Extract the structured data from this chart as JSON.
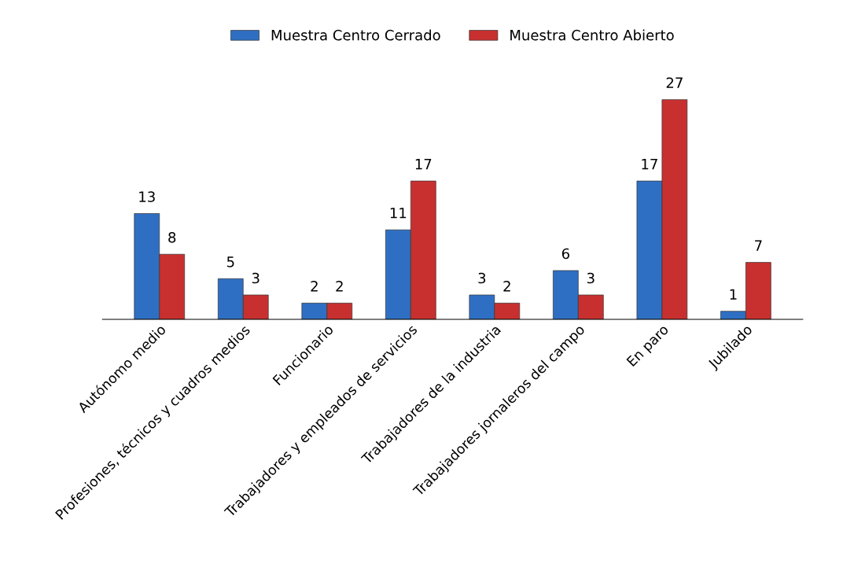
{
  "chart_data": {
    "type": "bar",
    "categories": [
      "Autónomo medio",
      "Profesiones, técnicos y cuadros medios",
      "Funcionario",
      "Trabajadores y empleados de servicios",
      "Trabajadores de la industria",
      "Trabajadores jornaleros del campo",
      "En paro",
      "Jubilado"
    ],
    "series": [
      {
        "name": "Muestra Centro Cerrado",
        "color": "#2f6fc3",
        "values": [
          13,
          5,
          2,
          11,
          3,
          6,
          17,
          1
        ]
      },
      {
        "name": "Muestra Centro Abierto",
        "color": "#c8302f",
        "values": [
          8,
          3,
          2,
          17,
          2,
          3,
          27,
          7
        ]
      }
    ],
    "data_labels": true,
    "legend": "top",
    "grid": false
  }
}
